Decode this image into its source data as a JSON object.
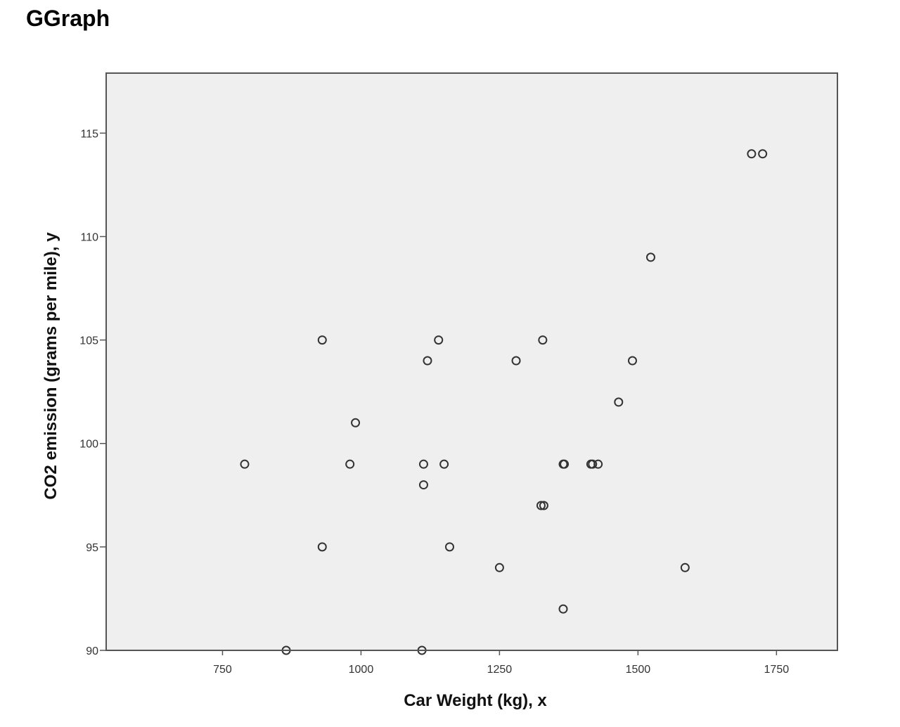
{
  "heading": "GGraph",
  "chart_data": {
    "type": "scatter",
    "title": "",
    "xlabel": "Car Weight (kg), x",
    "ylabel": "CO2 emission (grams per mile), y",
    "xlim": [
      540,
      1860
    ],
    "ylim": [
      90,
      117.9
    ],
    "xticks": [
      750,
      1000,
      1250,
      1500,
      1750
    ],
    "yticks": [
      90,
      95,
      100,
      105,
      110,
      115
    ],
    "grid": false,
    "marker": "open-circle",
    "colors": {
      "plot_background": "#efefef",
      "frame": "#555555",
      "marker_stroke": "#333333"
    },
    "points": [
      {
        "x": 790,
        "y": 99
      },
      {
        "x": 865,
        "y": 90
      },
      {
        "x": 930,
        "y": 105
      },
      {
        "x": 930,
        "y": 95
      },
      {
        "x": 980,
        "y": 99
      },
      {
        "x": 990,
        "y": 101
      },
      {
        "x": 1110,
        "y": 90
      },
      {
        "x": 1113,
        "y": 99
      },
      {
        "x": 1113,
        "y": 98
      },
      {
        "x": 1120,
        "y": 104
      },
      {
        "x": 1140,
        "y": 105
      },
      {
        "x": 1150,
        "y": 99
      },
      {
        "x": 1160,
        "y": 95
      },
      {
        "x": 1250,
        "y": 94
      },
      {
        "x": 1280,
        "y": 104
      },
      {
        "x": 1325,
        "y": 97
      },
      {
        "x": 1330,
        "y": 97
      },
      {
        "x": 1328,
        "y": 105
      },
      {
        "x": 1365,
        "y": 99
      },
      {
        "x": 1367,
        "y": 99
      },
      {
        "x": 1365,
        "y": 92
      },
      {
        "x": 1415,
        "y": 99
      },
      {
        "x": 1418,
        "y": 99
      },
      {
        "x": 1428,
        "y": 99
      },
      {
        "x": 1465,
        "y": 102
      },
      {
        "x": 1490,
        "y": 104
      },
      {
        "x": 1523,
        "y": 109
      },
      {
        "x": 1585,
        "y": 94
      },
      {
        "x": 1705,
        "y": 114
      },
      {
        "x": 1725,
        "y": 114
      }
    ]
  }
}
